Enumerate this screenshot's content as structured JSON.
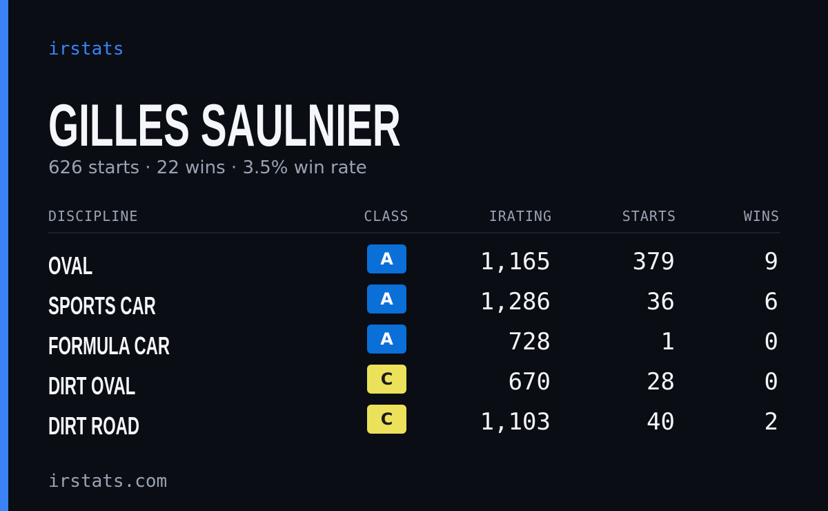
{
  "header": {
    "brand": "irstats"
  },
  "driver": {
    "name": "GILLES SAULNIER",
    "summary": "626 starts · 22 wins · 3.5% win rate"
  },
  "table": {
    "columns": [
      "DISCIPLINE",
      "CLASS",
      "IRATING",
      "STARTS",
      "WINS"
    ],
    "rows": [
      {
        "discipline": "OVAL",
        "class": "A",
        "class_color": "#0b6fd8",
        "class_text_color": "#ffffff",
        "irating": "1,165",
        "starts": "379",
        "wins": "9"
      },
      {
        "discipline": "SPORTS CAR",
        "class": "A",
        "class_color": "#0b6fd8",
        "class_text_color": "#ffffff",
        "irating": "1,286",
        "starts": "36",
        "wins": "6"
      },
      {
        "discipline": "FORMULA CAR",
        "class": "A",
        "class_color": "#0b6fd8",
        "class_text_color": "#ffffff",
        "irating": "728",
        "starts": "1",
        "wins": "0"
      },
      {
        "discipline": "DIRT OVAL",
        "class": "C",
        "class_color": "#ece15a",
        "class_text_color": "#1a1a1a",
        "irating": "670",
        "starts": "28",
        "wins": "0"
      },
      {
        "discipline": "DIRT ROAD",
        "class": "C",
        "class_color": "#ece15a",
        "class_text_color": "#1a1a1a",
        "irating": "1,103",
        "starts": "40",
        "wins": "2"
      }
    ]
  },
  "footer": {
    "url": "irstats.com"
  }
}
